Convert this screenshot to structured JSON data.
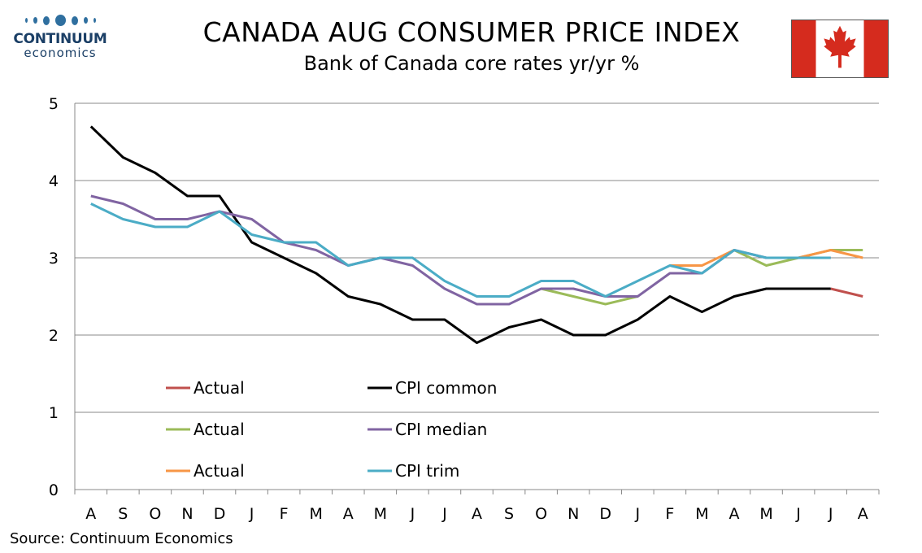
{
  "logo": {
    "name": "CONTINUUM",
    "sub": "economics"
  },
  "title": "CANADA AUG CONSUMER PRICE INDEX",
  "subtitle": "Bank of Canada core rates yr/yr %",
  "source": "Source: Continuum Economics",
  "flag_icon": "canada-flag-icon",
  "colors": {
    "flag_red": "#d52b1e",
    "grid": "#888888",
    "axis": "#888888"
  },
  "chart_data": {
    "type": "line",
    "categories": [
      "A",
      "S",
      "O",
      "N",
      "D",
      "J",
      "F",
      "M",
      "A",
      "M",
      "J",
      "J",
      "A",
      "S",
      "O",
      "N",
      "D",
      "J",
      "F",
      "M",
      "A",
      "M",
      "J",
      "J",
      "A"
    ],
    "ylim": [
      0,
      5
    ],
    "yticks": [
      "0",
      "1",
      "2",
      "3",
      "4",
      "5"
    ],
    "grid": "horizontal",
    "legend_position": "bottom-left",
    "series": [
      {
        "name": "Actual",
        "color": "#c0504d",
        "values": [
          null,
          null,
          null,
          null,
          null,
          null,
          null,
          null,
          null,
          null,
          null,
          null,
          null,
          null,
          null,
          null,
          null,
          null,
          null,
          null,
          null,
          null,
          null,
          2.6,
          2.5
        ]
      },
      {
        "name": "Actual",
        "color": "#9bbb59",
        "values": [
          null,
          null,
          null,
          null,
          null,
          null,
          null,
          null,
          null,
          null,
          null,
          null,
          null,
          null,
          2.6,
          2.5,
          2.4,
          2.5,
          null,
          null,
          3.1,
          2.9,
          3.0,
          3.1,
          3.1
        ]
      },
      {
        "name": "Actual",
        "color": "#f79646",
        "values": [
          null,
          null,
          null,
          null,
          null,
          null,
          null,
          null,
          null,
          null,
          null,
          null,
          null,
          null,
          null,
          null,
          null,
          null,
          2.9,
          2.9,
          3.1,
          null,
          3.0,
          3.1,
          3.0
        ]
      },
      {
        "name": "CPI common",
        "color": "#000000",
        "values": [
          4.7,
          4.3,
          4.1,
          3.8,
          3.8,
          3.2,
          3.0,
          2.8,
          2.5,
          2.4,
          2.2,
          2.2,
          1.9,
          2.1,
          2.2,
          2.0,
          2.0,
          2.2,
          2.5,
          2.3,
          2.5,
          2.6,
          2.6,
          2.6,
          null
        ]
      },
      {
        "name": "CPI median",
        "color": "#8064a2",
        "values": [
          3.8,
          3.7,
          3.5,
          3.5,
          3.6,
          3.5,
          3.2,
          3.1,
          2.9,
          3.0,
          2.9,
          2.6,
          2.4,
          2.4,
          2.6,
          2.6,
          2.5,
          2.5,
          2.8,
          2.8,
          3.1,
          3.0,
          3.0,
          3.0,
          null
        ]
      },
      {
        "name": "CPI trim",
        "color": "#4bacc6",
        "values": [
          3.7,
          3.5,
          3.4,
          3.4,
          3.6,
          3.3,
          3.2,
          3.2,
          2.9,
          3.0,
          3.0,
          2.7,
          2.5,
          2.5,
          2.7,
          2.7,
          2.5,
          2.7,
          2.9,
          2.8,
          3.1,
          3.0,
          3.0,
          3.0,
          null
        ]
      }
    ]
  }
}
